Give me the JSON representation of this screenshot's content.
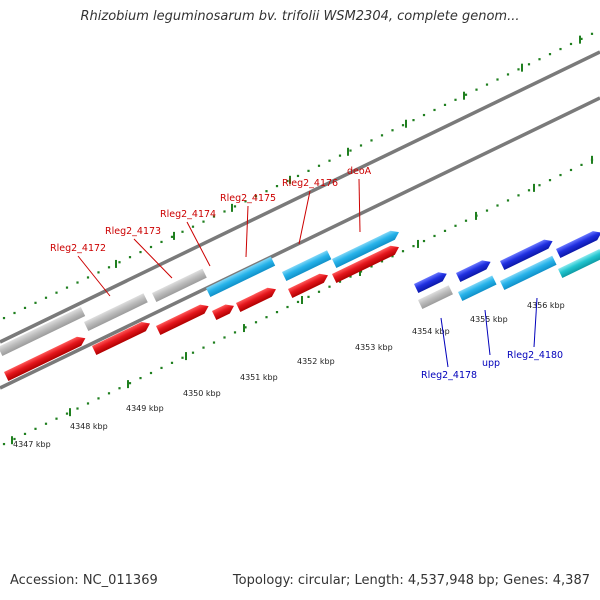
{
  "title": "Rhizobium leguminosarum bv. trifolii WSM2304, complete genom...",
  "accession": "Accession: NC_011369",
  "summary": "Topology: circular; Length: 4,537,948 bp; Genes: 4,387",
  "colors": {
    "grey_gene": "#bdbdbd",
    "light_blue_gene": "#27b3ea",
    "red_cds": "#e4161c",
    "dark_blue_gene": "#1f2fe0",
    "cyan_gene": "#21c5cf",
    "red_label": "#cc0000",
    "blue_label": "#0000bb",
    "tick_green": "#1f7f1f",
    "backbone": "#7a7a7a"
  },
  "scale_labels": [
    "4347 kbp",
    "4348 kbp",
    "4349 kbp",
    "4350 kbp",
    "4351 kbp",
    "4352 kbp",
    "4353 kbp",
    "4354 kbp",
    "4355 kbp",
    "4356 kbp"
  ],
  "upper_gene_labels": [
    "Rleg2_4172",
    "Rleg2_4173",
    "Rleg2_4174",
    "Rleg2_4175",
    "Rleg2_4176",
    "deoA"
  ],
  "lower_gene_labels": [
    "Rleg2_4178",
    "upp",
    "Rleg2_4180"
  ]
}
